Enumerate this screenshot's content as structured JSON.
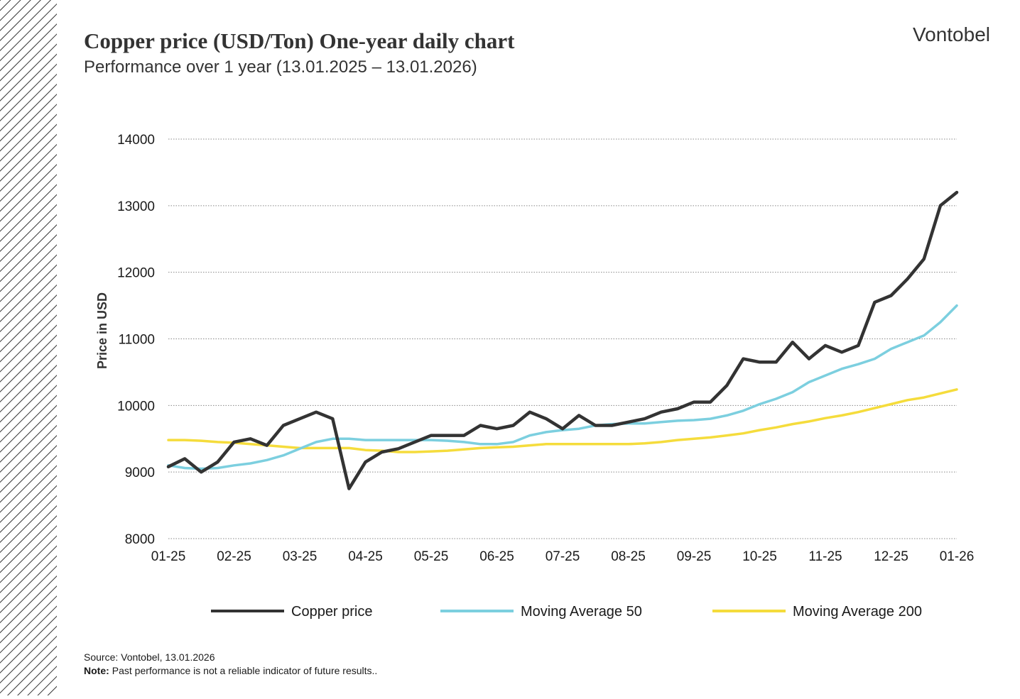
{
  "brand": "Vontobel",
  "chart_data": {
    "type": "line",
    "title": "Copper price (USD/Ton) One-year daily chart",
    "subtitle": "Performance over 1 year (13.01.2025 – 13.01.2026)",
    "y_label": "Price in USD",
    "categories": [
      "01-25",
      null,
      null,
      null,
      "02-25",
      null,
      null,
      null,
      "03-25",
      null,
      null,
      null,
      "04-25",
      null,
      null,
      null,
      "05-25",
      null,
      null,
      null,
      "06-25",
      null,
      null,
      null,
      "07-25",
      null,
      null,
      null,
      "08-25",
      null,
      null,
      null,
      "09-25",
      null,
      null,
      null,
      "10-25",
      null,
      null,
      null,
      "11-25",
      null,
      null,
      null,
      "12-25",
      null,
      null,
      null,
      "01-26"
    ],
    "series": [
      {
        "name": "Copper price",
        "color": "#333333",
        "values": [
          9080,
          9200,
          9000,
          9150,
          9450,
          9500,
          9400,
          9700,
          9800,
          9900,
          9800,
          8750,
          9150,
          9300,
          9350,
          9450,
          9550,
          9550,
          9550,
          9700,
          9650,
          9700,
          9900,
          9800,
          9650,
          9850,
          9700,
          9700,
          9750,
          9800,
          9900,
          9950,
          10050,
          10050,
          10300,
          10700,
          10650,
          10650,
          10950,
          10700,
          10900,
          10800,
          10900,
          11550,
          11650,
          11900,
          12200,
          13000,
          13200
        ]
      },
      {
        "name": "Moving Average 50",
        "color": "#7ccfdf",
        "values": [
          9100,
          9060,
          9050,
          9060,
          9100,
          9130,
          9180,
          9250,
          9350,
          9450,
          9500,
          9500,
          9480,
          9480,
          9480,
          9480,
          9480,
          9470,
          9450,
          9420,
          9420,
          9450,
          9550,
          9600,
          9630,
          9650,
          9700,
          9720,
          9730,
          9730,
          9750,
          9770,
          9780,
          9800,
          9850,
          9920,
          10020,
          10100,
          10200,
          10350,
          10450,
          10550,
          10620,
          10700,
          10850,
          10950,
          11050,
          11250,
          11500
        ]
      },
      {
        "name": "Moving Average 200",
        "color": "#f5dc3c",
        "values": [
          9480,
          9480,
          9470,
          9450,
          9440,
          9420,
          9400,
          9380,
          9360,
          9360,
          9360,
          9360,
          9330,
          9320,
          9300,
          9300,
          9310,
          9320,
          9340,
          9360,
          9370,
          9380,
          9400,
          9420,
          9420,
          9420,
          9420,
          9420,
          9420,
          9430,
          9450,
          9480,
          9500,
          9520,
          9550,
          9580,
          9630,
          9670,
          9720,
          9760,
          9810,
          9850,
          9900,
          9960,
          10020,
          10080,
          10120,
          10180,
          10240
        ]
      }
    ],
    "ylim": [
      8000,
      14000
    ],
    "yticks": [
      8000,
      9000,
      10000,
      11000,
      12000,
      13000,
      14000
    ],
    "grid": true
  },
  "footer": {
    "source": "Source: Vontobel, 13.01.2026",
    "note_label": "Note:",
    "note_text": "Past performance is not a reliable indicator of future results.."
  }
}
